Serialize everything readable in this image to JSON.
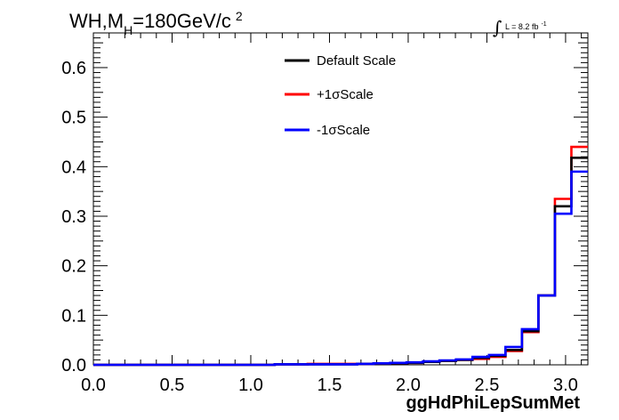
{
  "chart_data": {
    "type": "line",
    "title": {
      "prefix": "WH,M",
      "subscript": "H",
      "middle": "=180GeV/c",
      "superscript": "2"
    },
    "luminosity": {
      "integral_sign": "∫",
      "text": "L = 8.2 fb",
      "superscript": "-1"
    },
    "xlabel": "ggHdPhiLepSumMet",
    "ylabel": "",
    "xlim": [
      0,
      3.1416
    ],
    "ylim": [
      0,
      0.67
    ],
    "xticks": [
      "0.0",
      "0.5",
      "1.0",
      "1.5",
      "2.0",
      "2.5",
      "3.0"
    ],
    "yticks": [
      "0.0",
      "0.1",
      "0.2",
      "0.3",
      "0.4",
      "0.5",
      "0.6"
    ],
    "bin_edges": [
      0.0,
      0.1047,
      0.2094,
      0.3142,
      0.4189,
      0.5236,
      0.6283,
      0.733,
      0.8378,
      0.9425,
      1.0472,
      1.1519,
      1.2566,
      1.3614,
      1.4661,
      1.5708,
      1.6755,
      1.7802,
      1.885,
      1.9897,
      2.0944,
      2.1991,
      2.3038,
      2.4086,
      2.5133,
      2.618,
      2.7227,
      2.8274,
      2.9322,
      3.0369,
      3.1416
    ],
    "legend_position": "top-center",
    "grid": false,
    "series": [
      {
        "name": "Default Scale",
        "color": "#000000",
        "values": [
          0.0,
          0.0,
          0.0,
          0.0,
          0.0,
          0.0,
          0.0,
          0.0,
          0.0,
          0.0,
          0.0,
          0.001,
          0.001,
          0.001,
          0.001,
          0.001,
          0.002,
          0.003,
          0.003,
          0.004,
          0.006,
          0.008,
          0.01,
          0.014,
          0.018,
          0.03,
          0.068,
          0.14,
          0.32,
          0.418
        ]
      },
      {
        "name": "+1σScale",
        "color": "#ff0000",
        "values": [
          0.0,
          0.0,
          0.0,
          0.0,
          0.0,
          0.0,
          0.0,
          0.0,
          0.0,
          0.0,
          0.0,
          0.001,
          0.001,
          0.002,
          0.002,
          0.002,
          0.002,
          0.003,
          0.003,
          0.004,
          0.006,
          0.008,
          0.01,
          0.012,
          0.016,
          0.028,
          0.066,
          0.14,
          0.335,
          0.44
        ]
      },
      {
        "name": "-1σScale",
        "color": "#0000ff",
        "values": [
          0.0,
          0.0,
          0.0,
          0.0,
          0.0,
          0.0,
          0.0,
          0.0,
          0.0,
          0.0,
          0.0,
          0.001,
          0.001,
          0.001,
          0.001,
          0.001,
          0.002,
          0.003,
          0.004,
          0.005,
          0.007,
          0.009,
          0.011,
          0.016,
          0.02,
          0.036,
          0.072,
          0.14,
          0.305,
          0.39
        ]
      }
    ]
  }
}
